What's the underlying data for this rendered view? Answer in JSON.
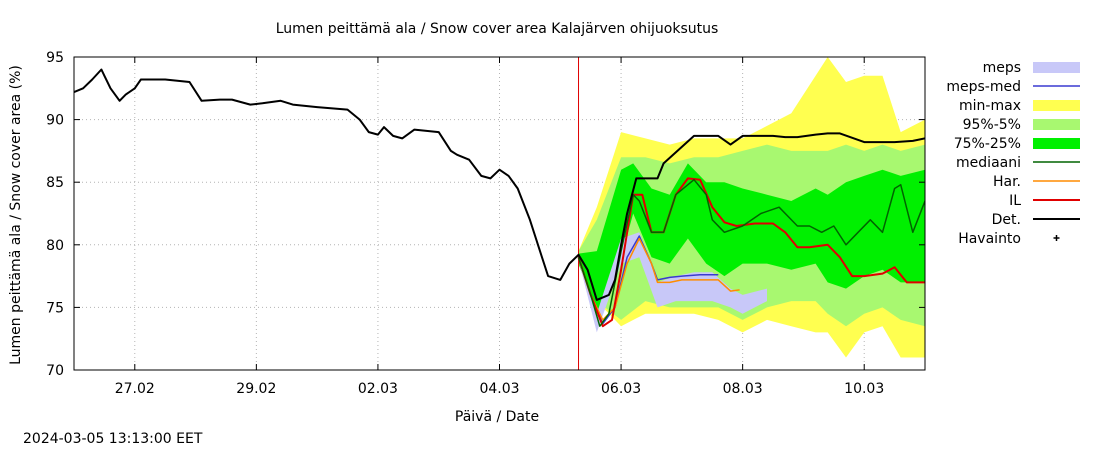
{
  "chart_data": {
    "type": "line",
    "title": "Lumen peittämä ala / Snow cover area Kalajärven ohijuoksutus",
    "xlabel": "Päivä / Date",
    "ylabel": "Lumen peittämä ala / Snow cover area (%)",
    "footer": "2024-03-05 13:13:00 EET",
    "x_ticks": [
      {
        "label": "27.02",
        "day": 1
      },
      {
        "label": "29.02",
        "day": 3
      },
      {
        "label": "02.03",
        "day": 5
      },
      {
        "label": "04.03",
        "day": 7
      },
      {
        "label": "06.03",
        "day": 9
      },
      {
        "label": "08.03",
        "day": 11
      },
      {
        "label": "10.03",
        "day": 13
      }
    ],
    "x_unit_note": "days after 26.02",
    "xlim": [
      0,
      14.0
    ],
    "ylim": [
      70,
      95
    ],
    "y_ticks": [
      70,
      75,
      80,
      85,
      90,
      95
    ],
    "grid": true,
    "legend_position": "outside-right",
    "forecast_start_day": 8.3,
    "legend": [
      {
        "label": "meps",
        "kind": "band",
        "color": "#c8c8f8"
      },
      {
        "label": "meps-med",
        "kind": "line",
        "color": "#3a3ad0"
      },
      {
        "label": "min-max",
        "kind": "band",
        "color": "#ffff50"
      },
      {
        "label": "95%-5%",
        "kind": "band",
        "color": "#a8f870"
      },
      {
        "label": "75%-25%",
        "kind": "band",
        "color": "#00f000"
      },
      {
        "label": "mediaani",
        "kind": "line",
        "color": "#006400"
      },
      {
        "label": "Har.",
        "kind": "line",
        "color": "#ff8c00"
      },
      {
        "label": "IL",
        "kind": "line",
        "color": "#e00000"
      },
      {
        "label": "Det.",
        "kind": "line",
        "color": "#000000"
      },
      {
        "label": "Havainto",
        "kind": "point",
        "color": "#000000"
      }
    ],
    "bands": {
      "min-max": {
        "x": [
          8.3,
          8.6,
          9.0,
          9.4,
          9.8,
          10.2,
          10.6,
          11.0,
          11.4,
          11.8,
          12.2,
          12.4,
          12.7,
          13.0,
          13.3,
          13.6,
          14.0
        ],
        "lower": [
          78.5,
          75.5,
          73.5,
          74.5,
          74.5,
          74.5,
          74.0,
          73.0,
          74.0,
          73.5,
          73.0,
          73.0,
          71.0,
          73.0,
          73.5,
          71.0,
          71.0
        ],
        "upper": [
          79.5,
          83.0,
          89.0,
          88.5,
          88.0,
          88.5,
          88.5,
          88.5,
          89.5,
          90.5,
          93.5,
          95.0,
          93.0,
          93.5,
          93.5,
          89.0,
          90.0
        ]
      },
      "95%-5%": {
        "x": [
          8.3,
          8.6,
          9.0,
          9.4,
          9.8,
          10.2,
          10.6,
          11.0,
          11.4,
          11.8,
          12.2,
          12.4,
          12.7,
          13.0,
          13.3,
          13.6,
          14.0
        ],
        "lower": [
          78.5,
          75.5,
          74.0,
          75.5,
          75.0,
          75.0,
          75.0,
          74.0,
          75.0,
          75.5,
          75.5,
          74.5,
          73.5,
          74.5,
          75.0,
          74.0,
          73.5
        ],
        "upper": [
          79.5,
          82.0,
          87.0,
          87.0,
          86.5,
          87.0,
          87.0,
          87.5,
          88.0,
          87.5,
          87.5,
          87.5,
          88.0,
          87.5,
          88.0,
          87.5,
          88.0
        ]
      },
      "75%-25%": {
        "x": [
          8.3,
          8.6,
          9.0,
          9.2,
          9.5,
          9.8,
          10.1,
          10.4,
          10.7,
          11.0,
          11.4,
          11.8,
          12.2,
          12.4,
          12.7,
          13.0,
          13.3,
          13.6,
          14.0
        ],
        "lower": [
          78.5,
          74.5,
          79.0,
          82.5,
          79.0,
          78.5,
          80.5,
          78.5,
          77.5,
          78.5,
          78.5,
          78.0,
          78.5,
          77.0,
          76.5,
          77.5,
          78.0,
          77.0,
          77.0
        ],
        "upper": [
          79.3,
          79.5,
          86.0,
          86.5,
          84.5,
          84.0,
          86.5,
          85.0,
          85.0,
          84.5,
          84.0,
          83.5,
          84.5,
          84.0,
          85.0,
          85.5,
          86.0,
          85.5,
          86.0
        ]
      },
      "meps": {
        "x": [
          8.3,
          8.6,
          9.0,
          9.3,
          9.6,
          9.9,
          10.2,
          10.5,
          10.8,
          11.0,
          11.4
        ],
        "lower": [
          78.8,
          73.0,
          78.5,
          79.0,
          75.0,
          75.5,
          75.5,
          75.5,
          75.0,
          74.5,
          75.5
        ],
        "upper": [
          79.2,
          74.5,
          80.5,
          81.0,
          77.0,
          77.5,
          77.8,
          77.8,
          76.5,
          76.0,
          76.5
        ]
      }
    },
    "series": [
      {
        "name": "Det.",
        "color": "#000000",
        "x": [
          0.0,
          0.15,
          0.3,
          0.45,
          0.5,
          0.6,
          0.75,
          0.85,
          1.0,
          1.1,
          1.5,
          1.9,
          2.1,
          2.4,
          2.6,
          2.9,
          3.1,
          3.4,
          3.6,
          4.0,
          4.5,
          4.7,
          4.85,
          5.0,
          5.1,
          5.25,
          5.4,
          5.6,
          6.0,
          6.2,
          6.3,
          6.5,
          6.7,
          6.85,
          7.0,
          7.15,
          7.3,
          7.5,
          7.7,
          7.8,
          8.0,
          8.15,
          8.3,
          8.45,
          8.6,
          8.8,
          8.9,
          9.0,
          9.1,
          9.25,
          9.5,
          9.6,
          9.7,
          10.2,
          10.4,
          10.6,
          10.8,
          11.0,
          11.5,
          11.7,
          11.9,
          12.2,
          12.4,
          12.6,
          13.0,
          13.5,
          13.8,
          14.0
        ],
        "values": [
          92.2,
          92.5,
          93.2,
          94.0,
          93.5,
          92.5,
          91.5,
          92.0,
          92.5,
          93.2,
          93.2,
          93.0,
          91.5,
          91.6,
          91.6,
          91.2,
          91.3,
          91.5,
          91.2,
          91.0,
          90.8,
          90.0,
          89.0,
          88.8,
          89.4,
          88.7,
          88.5,
          89.2,
          89.0,
          87.5,
          87.2,
          86.8,
          85.5,
          85.3,
          86.0,
          85.5,
          84.5,
          82.0,
          79.0,
          77.5,
          77.2,
          78.5,
          79.2,
          78.0,
          75.6,
          76.0,
          77.2,
          80.0,
          82.5,
          85.3,
          85.3,
          85.3,
          86.5,
          88.7,
          88.7,
          88.7,
          88.0,
          88.7,
          88.7,
          88.6,
          88.6,
          88.8,
          88.9,
          88.9,
          88.2,
          88.2,
          88.3,
          88.5
        ]
      },
      {
        "name": "mediaani",
        "color": "#006400",
        "x": [
          8.3,
          8.5,
          8.65,
          8.8,
          9.0,
          9.2,
          9.3,
          9.5,
          9.7,
          9.9,
          10.2,
          10.4,
          10.5,
          10.7,
          11.0,
          11.3,
          11.6,
          11.9,
          12.1,
          12.3,
          12.5,
          12.7,
          12.9,
          13.1,
          13.3,
          13.5,
          13.6,
          13.8,
          14.0
        ],
        "values": [
          79.0,
          76.0,
          73.5,
          74.5,
          79.5,
          84.0,
          83.5,
          81.0,
          81.0,
          84.0,
          85.2,
          84.0,
          82.0,
          81.0,
          81.5,
          82.5,
          83.0,
          81.5,
          81.5,
          81.0,
          81.5,
          80.0,
          81.0,
          82.0,
          81.0,
          84.5,
          84.8,
          81.0,
          83.5
        ]
      },
      {
        "name": "IL",
        "color": "#e00000",
        "x": [
          8.3,
          8.5,
          8.7,
          8.85,
          9.0,
          9.2,
          9.35,
          9.5,
          9.7,
          9.9,
          10.1,
          10.3,
          10.5,
          10.7,
          10.9,
          11.2,
          11.5,
          11.7,
          11.9,
          12.1,
          12.4,
          12.6,
          12.8,
          13.0,
          13.3,
          13.5,
          13.7,
          14.0
        ],
        "values": [
          79.0,
          76.0,
          73.5,
          74.0,
          78.0,
          84.0,
          84.0,
          81.0,
          81.0,
          84.0,
          85.3,
          85.2,
          83.0,
          81.8,
          81.5,
          81.7,
          81.7,
          81.0,
          79.8,
          79.8,
          80.0,
          79.0,
          77.5,
          77.5,
          77.7,
          78.2,
          77.0,
          77.0
        ]
      },
      {
        "name": "Har.",
        "color": "#ff8c00",
        "x": [
          8.3,
          8.5,
          8.7,
          8.9,
          9.1,
          9.3,
          9.5,
          9.6,
          9.8,
          10.0,
          10.3,
          10.6,
          10.8,
          10.95
        ],
        "values": [
          79.0,
          76.0,
          74.0,
          75.0,
          78.5,
          80.5,
          78.5,
          77.0,
          77.0,
          77.2,
          77.2,
          77.2,
          76.3,
          76.4
        ]
      },
      {
        "name": "meps-med",
        "color": "#3a3ad0",
        "x": [
          8.3,
          8.5,
          8.7,
          8.9,
          9.1,
          9.3,
          9.5,
          9.6,
          9.8,
          10.0,
          10.3,
          10.6
        ],
        "values": [
          79.0,
          76.0,
          73.7,
          75.0,
          79.0,
          80.7,
          78.5,
          77.2,
          77.4,
          77.5,
          77.6,
          77.6
        ]
      }
    ]
  }
}
